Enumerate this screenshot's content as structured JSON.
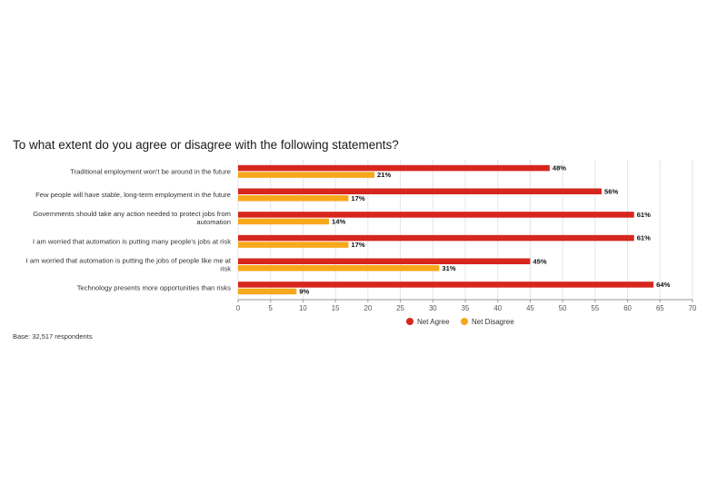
{
  "chart_data": {
    "type": "bar",
    "orientation": "horizontal",
    "title": "To what extent do you agree or disagree with the following statements?",
    "categories": [
      [
        "Traditional employment won't be around in the future"
      ],
      [
        "Few people will have stable, long-term employment in the future"
      ],
      [
        "Governments should take any action needed to protect jobs from",
        "automation"
      ],
      [
        "I am worried that automation is putting many people's jobs at risk"
      ],
      [
        "I am worried that automation is putting the jobs of people like me at",
        "risk"
      ],
      [
        "Technology presents more opportunities than risks"
      ]
    ],
    "series": [
      {
        "name": "Net Agree",
        "color": "#d7261e",
        "values": [
          48,
          56,
          61,
          61,
          45,
          64
        ],
        "labels": [
          "48%",
          "56%",
          "61%",
          "61%",
          "45%",
          "64%"
        ]
      },
      {
        "name": "Net Disagree",
        "color": "#f7a81b",
        "values": [
          21,
          17,
          14,
          17,
          31,
          9
        ],
        "labels": [
          "21%",
          "17%",
          "14%",
          "17%",
          "31%",
          "9%"
        ]
      }
    ],
    "xlim": [
      0,
      70
    ],
    "xticks": [
      "0",
      "5",
      "10",
      "15",
      "20",
      "25",
      "30",
      "35",
      "40",
      "45",
      "50",
      "55",
      "60",
      "65",
      "70"
    ],
    "grid": true,
    "legend_position": "bottom-center",
    "note": "Base: 32,517 respondents"
  }
}
